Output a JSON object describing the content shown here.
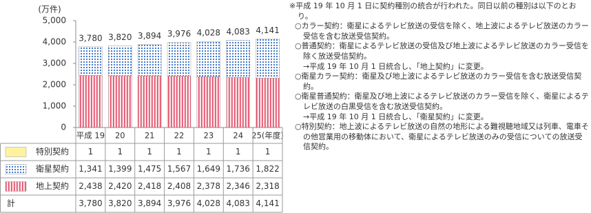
{
  "chart_data": {
    "type": "stacked-bar",
    "y_label": "(万件)",
    "categories": [
      "平成 19",
      "20",
      "21",
      "22",
      "23",
      "24",
      "25(年度)"
    ],
    "ylim": [
      0,
      5000
    ],
    "yticks": [
      0,
      {
        "value": 1000,
        "label": "1,000"
      },
      {
        "value": 2000,
        "label": "2,000"
      },
      {
        "value": 3000,
        "label": "3,000"
      },
      {
        "value": 4000,
        "label": "4,000"
      },
      {
        "value": 5000,
        "label": "5,000"
      }
    ],
    "grid": false,
    "series": [
      {
        "name": "特別契約",
        "color": "#fff3a0",
        "pattern": "solid",
        "values": [
          1,
          1,
          1,
          1,
          1,
          1,
          1
        ]
      },
      {
        "name": "衛星契約",
        "color": "#2f6cc8",
        "pattern": "dots",
        "values": [
          1341,
          1399,
          1475,
          1567,
          1649,
          1736,
          1822
        ],
        "value_labels": [
          "1,341",
          "1,399",
          "1,475",
          "1,567",
          "1,649",
          "1,736",
          "1,822"
        ]
      },
      {
        "name": "地上契約",
        "color": "#e04a66",
        "pattern": "stripes",
        "values": [
          2438,
          2420,
          2418,
          2408,
          2378,
          2346,
          2318
        ],
        "value_labels": [
          "2,438",
          "2,420",
          "2,418",
          "2,408",
          "2,378",
          "2,346",
          "2,318"
        ]
      }
    ],
    "totals": {
      "name": "計",
      "values": [
        3780,
        3820,
        3894,
        3976,
        4028,
        4083,
        4141
      ],
      "value_labels": [
        "3,780",
        "3,820",
        "3,894",
        "3,976",
        "4,028",
        "4,083",
        "4,141"
      ]
    }
  },
  "notes": [
    "※平成 19 年 10 月 1 日に契約種別の統合が行われた。同日以前の種別は以下のとおり。",
    "○カラー契約：衛星によるテレビ放送の受信を除く、地上波によるテレビ放送のカラー受信を含む放送受信契約。",
    "○普通契約：衛星によるテレビ放送の受信及び地上波によるテレビ放送のカラー受信を除く放送受信契約。",
    "→平成 19 年 10 月 1 日統合し、「地上契約」に変更。",
    "○衛星カラー契約：衛星及び地上波によるテレビ放送のカラー受信を含む放送受信契約。",
    "○衛星普通契約：衛星及び地上波によるテレビ放送のカラー受信を除く、衛星によるテレビ放送の白黒受信を含む放送受信契約。",
    "→平成 19 年 10 月 1 日統合し、「衛星契約」に変更。",
    "○特別契約：地上波によるテレビ放送の自然の地形による難視聴地域又は列車、電車その他営業用の移動体において、衛星によるテレビ放送のみの受信についての放送受信契約。"
  ]
}
